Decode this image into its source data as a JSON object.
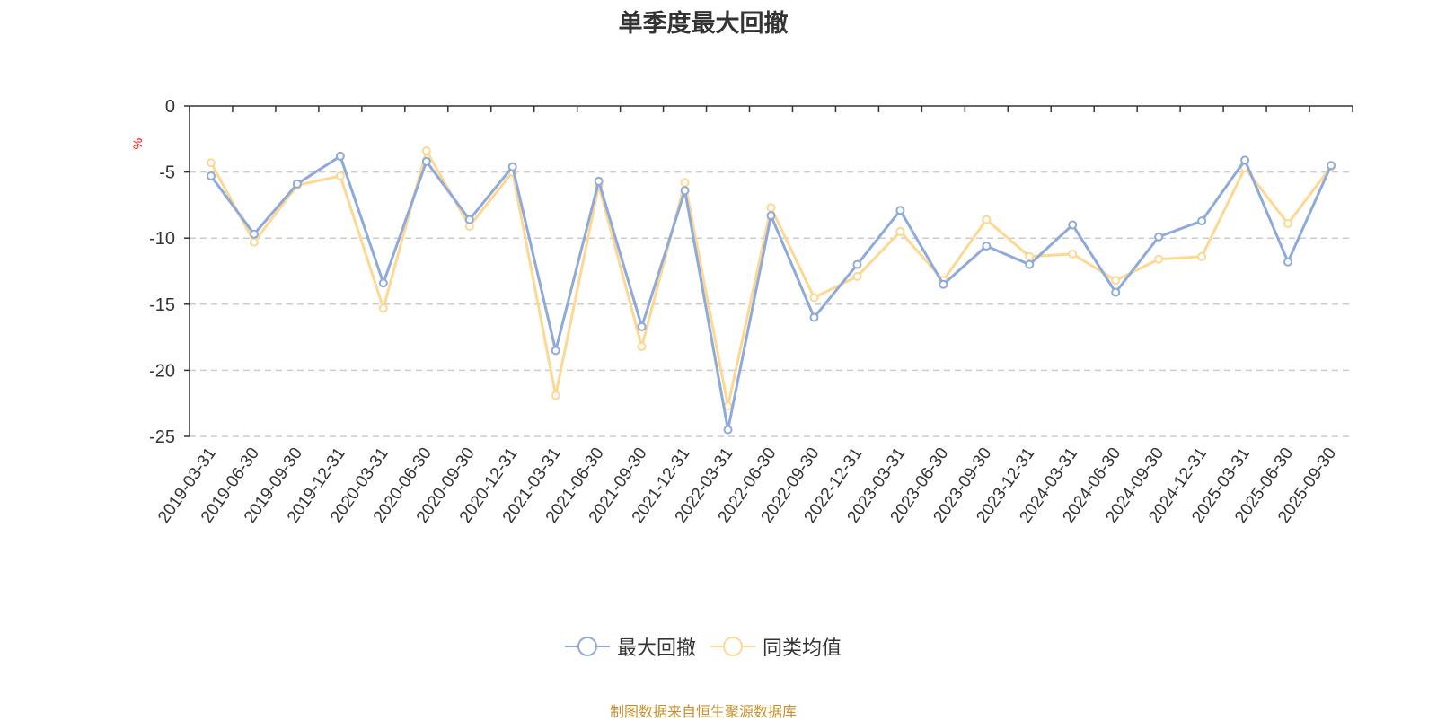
{
  "title": "单季度最大回撤",
  "source_note": "制图数据来自恒生聚源数据库",
  "colors": {
    "series1": "#8eaadb",
    "series2": "#fdd893",
    "grid": "#cccccc",
    "unit": "#ff0000",
    "source": "#c8902c"
  },
  "chart_data": {
    "type": "line",
    "ylabel": "%",
    "ylim": [
      -25,
      0
    ],
    "yticks": [
      0,
      -5,
      -10,
      -15,
      -20,
      -25
    ],
    "grid": "horizontal-dashed",
    "legend_position": "bottom",
    "categories": [
      "2019-03-31",
      "2019-06-30",
      "2019-09-30",
      "2019-12-31",
      "2020-03-31",
      "2020-06-30",
      "2020-09-30",
      "2020-12-31",
      "2021-03-31",
      "2021-06-30",
      "2021-09-30",
      "2021-12-31",
      "2022-03-31",
      "2022-06-30",
      "2022-09-30",
      "2022-12-31",
      "2023-03-31",
      "2023-06-30",
      "2023-09-30",
      "2023-12-31",
      "2024-03-31",
      "2024-06-30",
      "2024-09-30",
      "2024-12-31",
      "2025-03-31",
      "2025-06-30",
      "2025-09-30"
    ],
    "series": [
      {
        "name": "最大回撤",
        "values": [
          -5.3,
          -9.7,
          -5.9,
          -3.8,
          -13.4,
          -4.2,
          -8.6,
          -4.6,
          -18.5,
          -5.7,
          -16.7,
          -6.4,
          -24.5,
          -8.3,
          -16.0,
          -12.0,
          -7.9,
          -13.5,
          -10.6,
          -12.0,
          -9.0,
          -14.1,
          -9.9,
          -8.7,
          -4.1,
          -11.8,
          -4.5
        ]
      },
      {
        "name": "同类均值",
        "values": [
          -4.3,
          -10.3,
          -6.0,
          -5.3,
          -15.3,
          -3.4,
          -9.1,
          -5.0,
          -21.9,
          -6.0,
          -18.2,
          -5.8,
          -22.7,
          -7.7,
          -14.5,
          -12.9,
          -9.5,
          -13.2,
          -8.6,
          -11.4,
          -11.2,
          -13.2,
          -11.6,
          -11.4,
          -4.7,
          -8.9,
          -4.6
        ]
      }
    ]
  }
}
